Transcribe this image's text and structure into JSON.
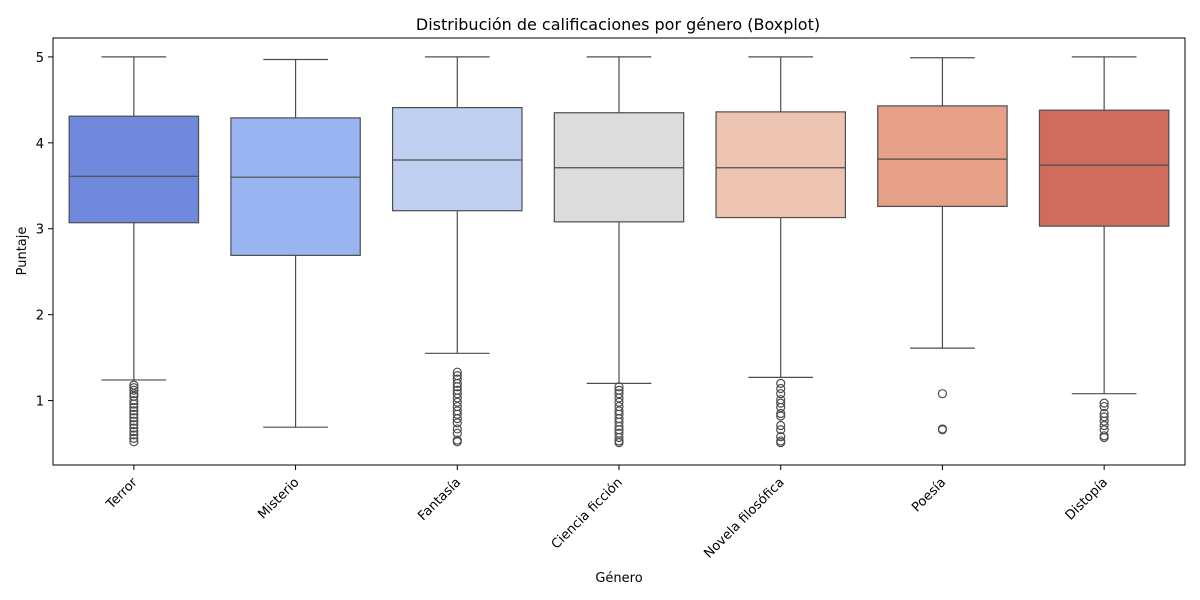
{
  "chart_data": {
    "type": "boxplot",
    "title": "Distribución de calificaciones por género (Boxplot)",
    "xlabel": "Género",
    "ylabel": "Puntaje",
    "ylim": [
      0.25,
      5.22
    ],
    "yticks": [
      1,
      2,
      3,
      4,
      5
    ],
    "grid": false,
    "legend": "none",
    "categories": [
      "Terror",
      "Misterio",
      "Fantasía",
      "Ciencia ficción",
      "Novela filosófica",
      "Poesía",
      "Distopía"
    ],
    "boxes": [
      {
        "category": "Terror",
        "color": "#7089dd",
        "whisker_low": 1.24,
        "q1": 3.07,
        "median": 3.61,
        "q3": 4.31,
        "whisker_high": 5.0,
        "outliers": [
          1.18,
          1.15,
          1.12,
          1.08,
          1.05,
          1.0,
          0.96,
          0.92,
          0.88,
          0.84,
          0.8,
          0.76,
          0.72,
          0.68,
          0.64,
          0.6,
          0.56,
          0.52
        ]
      },
      {
        "category": "Misterio",
        "color": "#99b4f0",
        "whisker_low": 0.69,
        "q1": 2.69,
        "median": 3.6,
        "q3": 4.29,
        "whisker_high": 4.97,
        "outliers": []
      },
      {
        "category": "Fantasía",
        "color": "#bfd0f0",
        "whisker_low": 1.55,
        "q1": 3.21,
        "median": 3.8,
        "q3": 4.41,
        "whisker_high": 5.0,
        "outliers": [
          1.33,
          1.29,
          1.25,
          1.2,
          1.16,
          1.12,
          1.08,
          1.03,
          0.98,
          0.93,
          0.88,
          0.84,
          0.79,
          0.74,
          0.67,
          0.62,
          0.54,
          0.52
        ]
      },
      {
        "category": "Ciencia ficción",
        "color": "#dcdcdc",
        "whisker_low": 1.2,
        "q1": 3.08,
        "median": 3.71,
        "q3": 4.35,
        "whisker_high": 5.0,
        "outliers": [
          1.16,
          1.12,
          1.08,
          1.03,
          0.98,
          0.93,
          0.88,
          0.84,
          0.79,
          0.75,
          0.7,
          0.66,
          0.62,
          0.57,
          0.53,
          0.51
        ]
      },
      {
        "category": "Novela filosófica",
        "color": "#ecc4b1",
        "whisker_low": 1.27,
        "q1": 3.13,
        "median": 3.71,
        "q3": 4.36,
        "whisker_high": 5.0,
        "outliers": [
          1.2,
          1.14,
          1.08,
          1.01,
          0.97,
          0.92,
          0.85,
          0.82,
          0.71,
          0.66,
          0.58,
          0.53,
          0.51
        ]
      },
      {
        "category": "Poesía",
        "color": "#e6a087",
        "whisker_low": 1.61,
        "q1": 3.26,
        "median": 3.81,
        "q3": 4.43,
        "whisker_high": 4.99,
        "outliers": [
          1.08,
          0.67,
          0.66
        ]
      },
      {
        "category": "Distopía",
        "color": "#cf6c5e",
        "whisker_low": 1.08,
        "q1": 3.03,
        "median": 3.74,
        "q3": 4.38,
        "whisker_high": 5.0,
        "outliers": [
          0.97,
          0.93,
          0.85,
          0.81,
          0.76,
          0.71,
          0.66,
          0.59,
          0.57
        ]
      }
    ]
  }
}
